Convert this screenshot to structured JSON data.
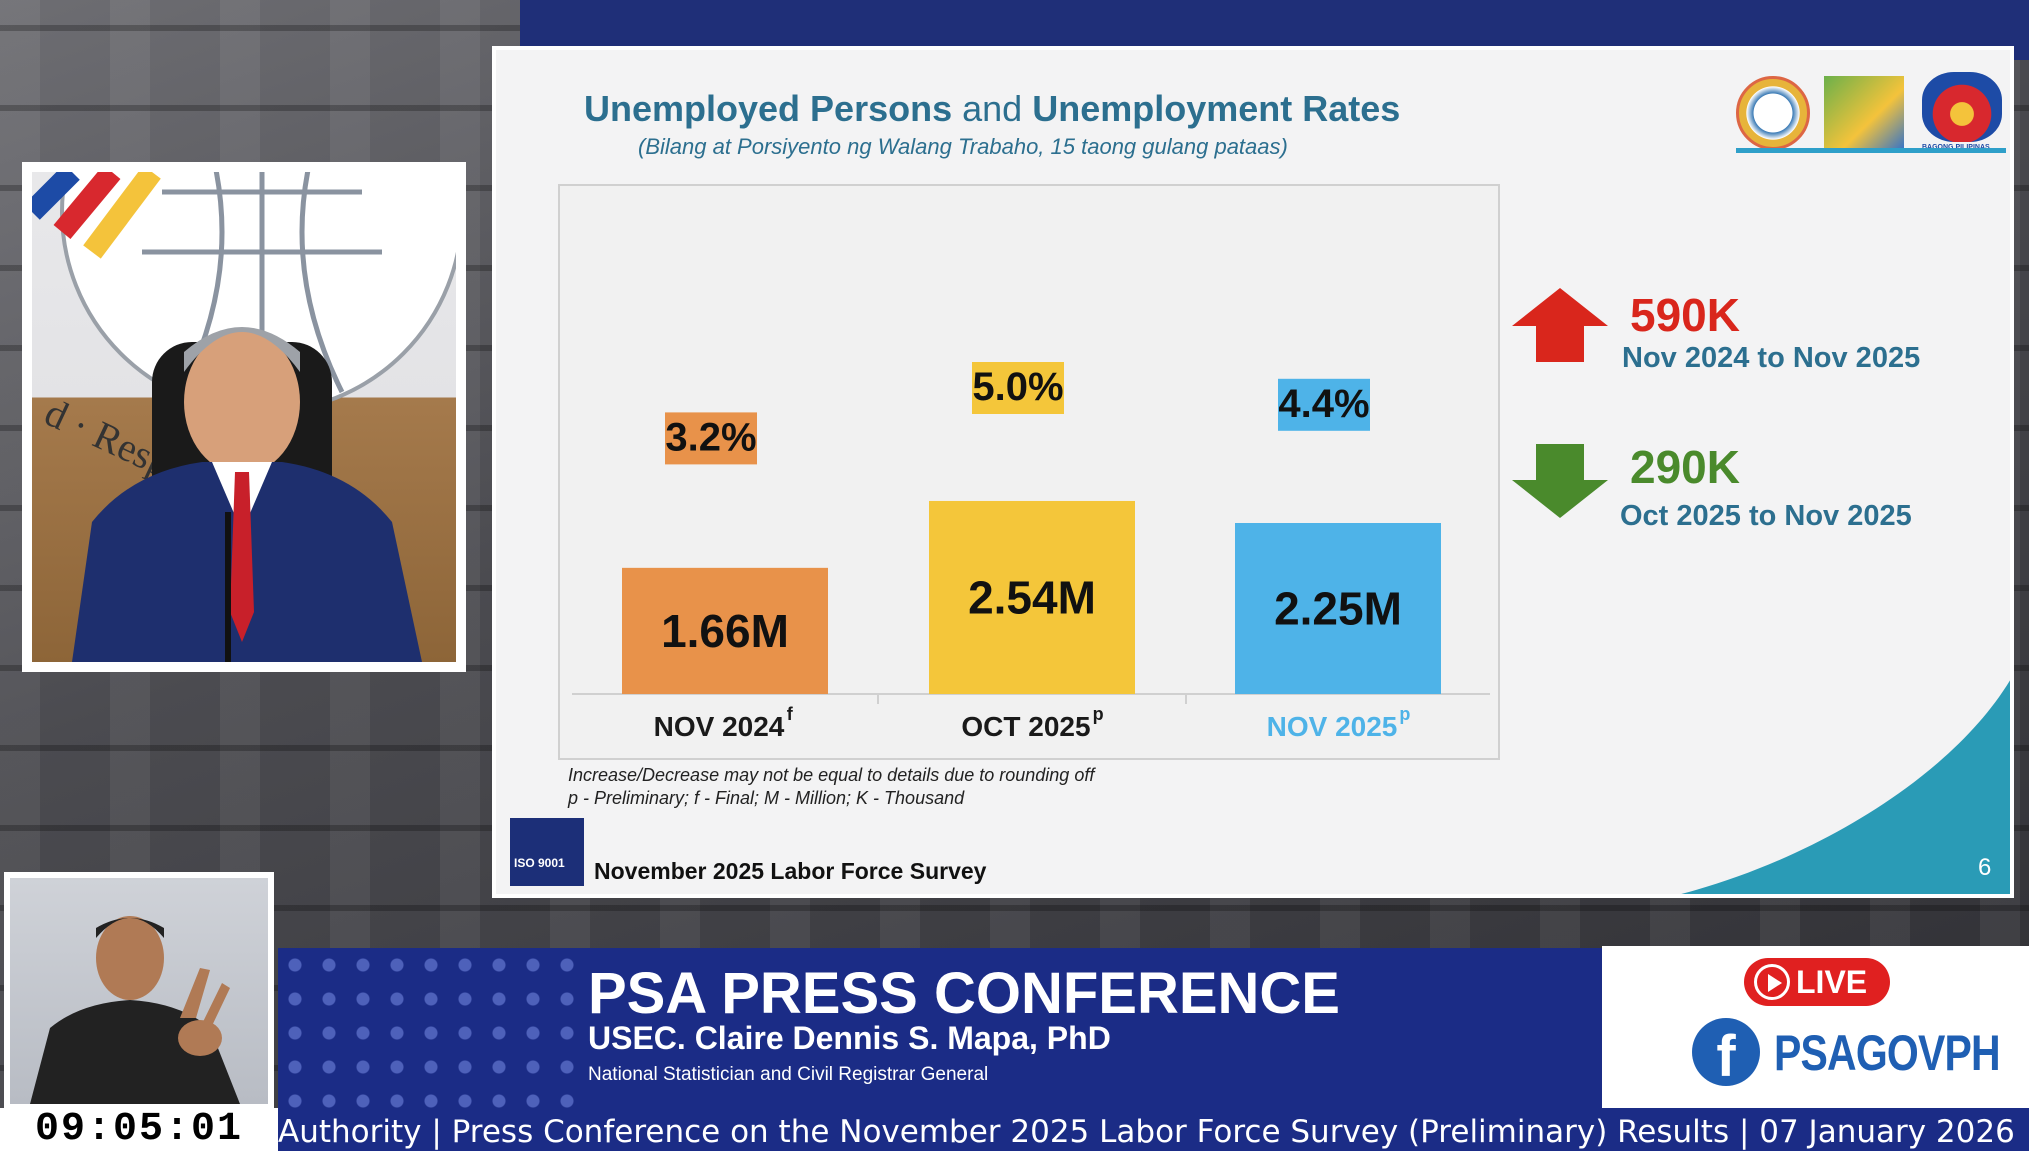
{
  "slide": {
    "title_part1": "Unemployed Persons",
    "title_and": "and",
    "title_part2": "Unemployment Rates",
    "subtitle": "(Bilang at Porsiyento ng Walang Trabaho, 15 taong gulang pataas)",
    "footnote_line1": "Increase/Decrease may not be equal to details due to rounding off",
    "footnote_line2": "p - Preliminary; f - Final; M - Million; K - Thousand",
    "survey_label": "November 2025 Labor Force Survey",
    "iso_label": "ISO 9001",
    "page_number": "6",
    "logos": [
      "psa-seal",
      "lfs-logo",
      "bagong-pilipinas-logo"
    ],
    "logo_text": "BAGONG PILIPINAS"
  },
  "chart_data": {
    "type": "bar",
    "categories": [
      "NOV 2024",
      "OCT 2025",
      "NOV 2025"
    ],
    "category_superscripts": [
      "f",
      "p",
      "p"
    ],
    "values": [
      1.66,
      2.54,
      2.25
    ],
    "value_labels": [
      "1.66M",
      "2.54M",
      "2.25M"
    ],
    "rates": [
      3.2,
      5.0,
      4.4
    ],
    "rate_labels": [
      "3.2%",
      "5.0%",
      "4.4%"
    ],
    "colors": [
      "#e8924a",
      "#f4c63a",
      "#4eb3e8"
    ],
    "category_label_colors": [
      "#1a1a1a",
      "#1a1a1a",
      "#4eb3e8"
    ]
  },
  "changes": [
    {
      "direction": "up",
      "value": "590K",
      "period": "Nov 2024 to Nov 2025",
      "color": "#d9261c",
      "arrow_color": "#d9261c"
    },
    {
      "direction": "down",
      "value": "290K",
      "period": "Oct 2025 to Nov 2025",
      "color": "#4a8a2c",
      "arrow_color": "#4a8a2c"
    }
  ],
  "broadcast": {
    "conference_title": "PSA PRESS CONFERENCE",
    "speaker_name": "USEC. Claire Dennis S. Mapa, PhD",
    "speaker_role": "National Statistician and Civil Registrar General",
    "live_label": "LIVE",
    "facebook_handle": "PSAGOVPH",
    "clock": "09:05:01",
    "ticker": "Authority | Press Conference on the November 2025 Labor Force Survey (Preliminary) Results | 07 January 2026",
    "backdrop_text": "d · Respo... · World-cl"
  }
}
